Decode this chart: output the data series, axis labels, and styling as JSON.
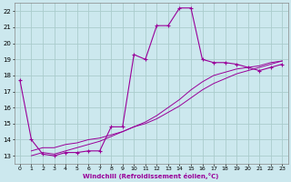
{
  "xlabel": "Windchill (Refroidissement éolien,°C)",
  "background_color": "#cce8ee",
  "grid_color": "#aacccc",
  "line_color": "#990099",
  "xlim": [
    -0.5,
    23.5
  ],
  "ylim": [
    12.5,
    22.5
  ],
  "xticks": [
    0,
    1,
    2,
    3,
    4,
    5,
    6,
    7,
    8,
    9,
    10,
    11,
    12,
    13,
    14,
    15,
    16,
    17,
    18,
    19,
    20,
    21,
    22,
    23
  ],
  "yticks": [
    13,
    14,
    15,
    16,
    17,
    18,
    19,
    20,
    21,
    22
  ],
  "main_x": [
    0,
    1,
    2,
    3,
    4,
    5,
    6,
    7,
    8,
    9,
    10,
    11,
    12,
    13,
    14,
    15,
    16,
    17,
    18,
    19,
    20,
    21,
    22,
    23
  ],
  "main_y": [
    17.7,
    14.0,
    13.1,
    13.0,
    13.2,
    13.2,
    13.3,
    13.3,
    14.8,
    14.8,
    19.3,
    19.0,
    21.1,
    21.1,
    22.2,
    22.2,
    19.0,
    18.8,
    18.8,
    18.7,
    18.5,
    18.3,
    18.5,
    18.7
  ],
  "line2_x": [
    1,
    2,
    3,
    4,
    5,
    6,
    7,
    8,
    9,
    10,
    11,
    12,
    13,
    14,
    15,
    16,
    17,
    18,
    19,
    20,
    21,
    22,
    23
  ],
  "line2_y": [
    13.3,
    13.5,
    13.5,
    13.7,
    13.8,
    14.0,
    14.1,
    14.3,
    14.5,
    14.8,
    15.0,
    15.3,
    15.7,
    16.1,
    16.6,
    17.1,
    17.5,
    17.8,
    18.1,
    18.3,
    18.5,
    18.7,
    18.9
  ],
  "line3_x": [
    1,
    2,
    3,
    4,
    5,
    6,
    7,
    8,
    9,
    10,
    11,
    12,
    13,
    14,
    15,
    16,
    17,
    18,
    19,
    20,
    21,
    22,
    23
  ],
  "line3_y": [
    13.0,
    13.2,
    13.1,
    13.3,
    13.5,
    13.7,
    13.9,
    14.2,
    14.5,
    14.8,
    15.1,
    15.5,
    16.0,
    16.5,
    17.1,
    17.6,
    18.0,
    18.2,
    18.4,
    18.5,
    18.6,
    18.8,
    18.9
  ]
}
